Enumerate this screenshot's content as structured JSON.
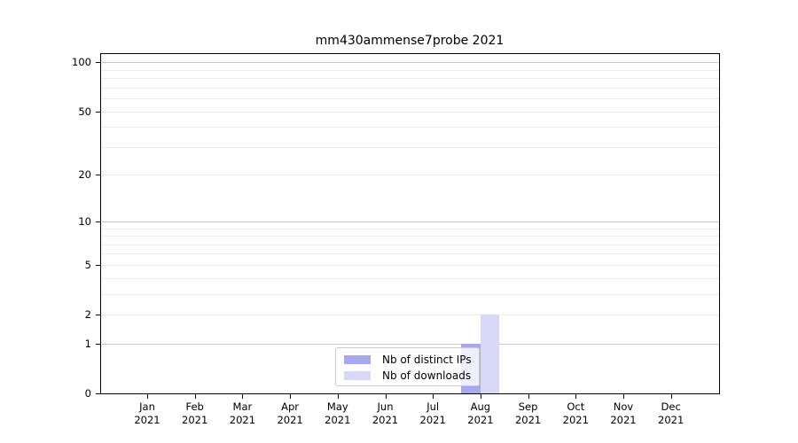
{
  "chart_data": {
    "type": "bar",
    "title": "mm430ammense7probe 2021",
    "categories": [
      "Jan",
      "Feb",
      "Mar",
      "Apr",
      "May",
      "Jun",
      "Jul",
      "Aug",
      "Sep",
      "Oct",
      "Nov",
      "Dec"
    ],
    "x_year_label": "2021",
    "series": [
      {
        "name": "Nb of distinct IPs",
        "color": "#a8a8ee",
        "values": [
          0,
          0,
          0,
          0,
          0,
          0,
          0,
          1,
          0,
          0,
          0,
          0
        ]
      },
      {
        "name": "Nb of downloads",
        "color": "#d8d8f8",
        "values": [
          0,
          0,
          0,
          0,
          0,
          0,
          0,
          2,
          0,
          0,
          0,
          0
        ]
      }
    ],
    "y_axis": {
      "scale": "log1p",
      "ticks": [
        0,
        1,
        2,
        5,
        10,
        20,
        50,
        100
      ],
      "tick_labels": [
        "0",
        "1",
        "2",
        "5",
        "10",
        "20",
        "50",
        "100"
      ],
      "minor_gridlines": [
        3,
        4,
        6,
        7,
        8,
        9,
        30,
        40,
        60,
        70,
        80,
        90
      ],
      "emphasized_gridlines": [
        1,
        10,
        100
      ],
      "ylim": [
        0,
        112
      ]
    },
    "legend": {
      "position": "lower-center"
    },
    "grid": true,
    "colors": {
      "bar_distinct_ips": "#a8a8ee",
      "bar_downloads": "#d8d8f8",
      "gridline_minor": "#ececec",
      "gridline_major": "#c9c9c9",
      "axis": "#000000",
      "legend_border": "#cccccc"
    }
  }
}
